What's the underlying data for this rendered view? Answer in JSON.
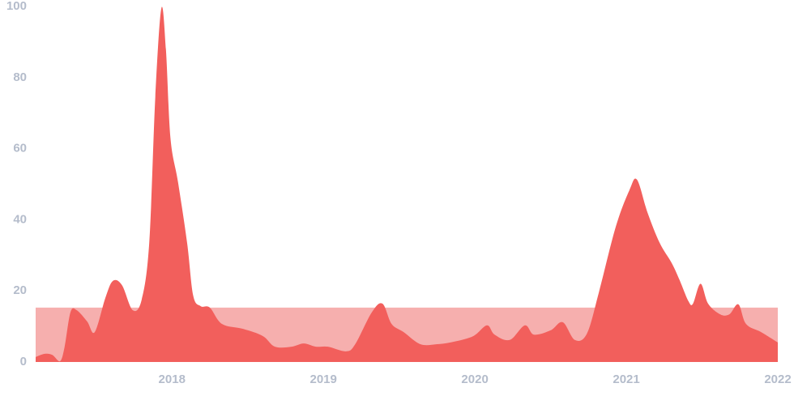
{
  "chart_data": {
    "type": "area",
    "x": [
      2017.1,
      2017.16,
      2017.21,
      2017.26,
      2017.29,
      2017.33,
      2017.37,
      2017.44,
      2017.49,
      2017.56,
      2017.61,
      2017.67,
      2017.74,
      2017.8,
      2017.85,
      2017.89,
      2017.93,
      2017.96,
      2017.99,
      2018.04,
      2018.1,
      2018.14,
      2018.19,
      2018.25,
      2018.33,
      2018.47,
      2018.6,
      2018.68,
      2018.79,
      2018.87,
      2018.95,
      2019.03,
      2019.15,
      2019.21,
      2019.32,
      2019.39,
      2019.45,
      2019.53,
      2019.64,
      2019.75,
      2019.86,
      2019.99,
      2020.08,
      2020.13,
      2020.23,
      2020.33,
      2020.39,
      2020.5,
      2020.58,
      2020.66,
      2020.74,
      2020.82,
      2020.93,
      2021.02,
      2021.07,
      2021.14,
      2021.22,
      2021.3,
      2021.35,
      2021.41,
      2021.44,
      2021.49,
      2021.54,
      2021.62,
      2021.68,
      2021.74,
      2021.79,
      2021.89,
      2022.0
    ],
    "values": [
      1.4,
      2.3,
      2,
      0.2,
      4,
      14,
      14.6,
      11.4,
      8.4,
      18,
      22.8,
      21.6,
      14.6,
      17.5,
      33.5,
      74.5,
      99.5,
      88,
      63,
      50.6,
      33.5,
      18.7,
      15.7,
      15.3,
      10.7,
      9.3,
      7.3,
      4.3,
      4.3,
      5.2,
      4.3,
      4.3,
      3,
      5,
      14,
      16.4,
      10.7,
      8.4,
      5,
      5,
      5.7,
      7.3,
      10.3,
      7.7,
      6.2,
      10.3,
      7.7,
      8.9,
      11.2,
      6.2,
      8,
      19.8,
      38,
      48.3,
      51.3,
      42,
      33.5,
      27.8,
      23.2,
      17.1,
      16.4,
      22,
      16.4,
      13.4,
      13.4,
      16.2,
      10.7,
      8.4,
      5.5
    ],
    "color": "#f25f5c",
    "reference_band": {
      "value": 15.3,
      "color": "#f6afae"
    },
    "xlim": [
      2017.1,
      2022
    ],
    "xticks": [
      2018,
      2019,
      2020,
      2021,
      2022
    ],
    "ylim": [
      0,
      100
    ],
    "yticks": [
      0,
      20,
      40,
      60,
      80,
      100
    ]
  }
}
